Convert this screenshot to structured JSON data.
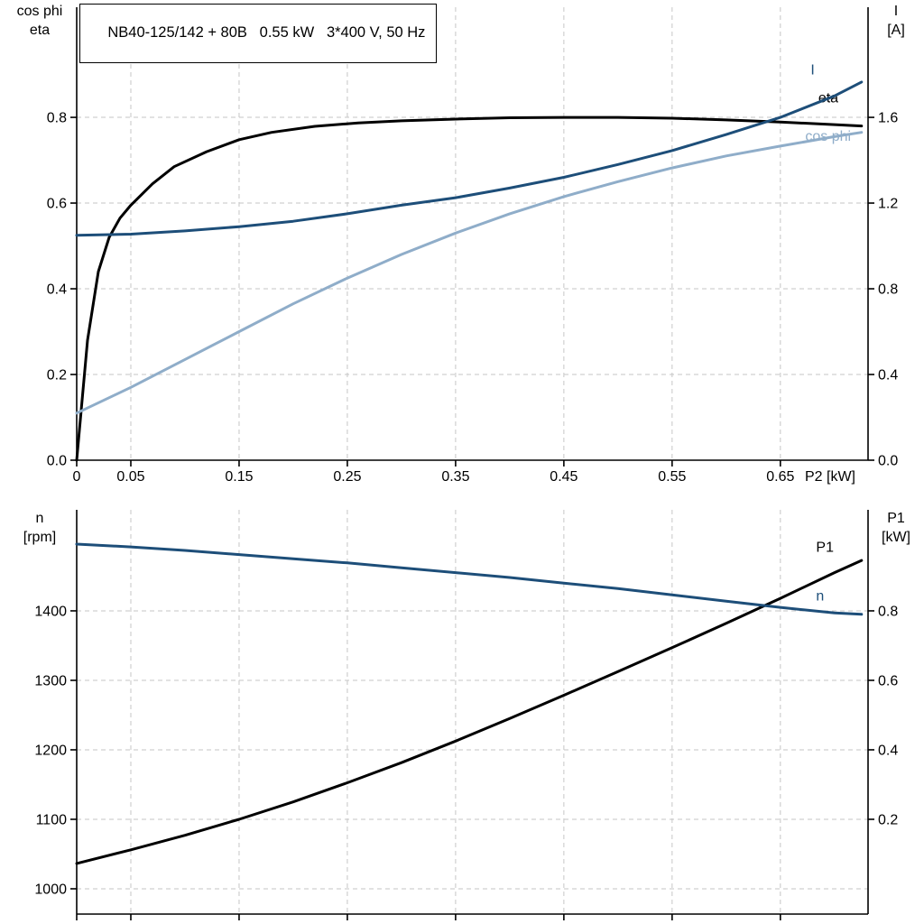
{
  "title": "NB40-125/142 + 80B   0.55 kW   3*400 V, 50 Hz",
  "colors": {
    "black": "#000000",
    "dark_blue": "#1d4e79",
    "light_blue": "#8fadc9",
    "grid": "#c6c6c6",
    "axis": "#000000"
  },
  "chart_data": [
    {
      "id": "top",
      "type": "line",
      "x_axis": {
        "label": "P2 [kW]",
        "min": 0,
        "max": 0.731,
        "ticks": [
          0,
          0.05,
          0.15,
          0.25,
          0.35,
          0.45,
          0.55,
          0.65
        ],
        "tick_labels": [
          "0",
          "0.05",
          "0.15",
          "0.25",
          "0.35",
          "0.45",
          "0.55",
          "0.65"
        ]
      },
      "left_axis": {
        "label_lines": [
          "cos phi",
          "eta"
        ],
        "min": 0,
        "max": 1.057,
        "ticks": [
          0,
          0.2,
          0.4,
          0.6,
          0.8
        ],
        "tick_labels": [
          "0.0",
          "0.2",
          "0.4",
          "0.6",
          "0.8"
        ]
      },
      "right_axis": {
        "label_lines": [
          "I",
          "[A]"
        ],
        "min": 0,
        "max": 2.114,
        "ticks": [
          0,
          0.4,
          0.8,
          1.2,
          1.6
        ],
        "tick_labels": [
          "0.0",
          "0.4",
          "0.8",
          "1.2",
          "1.6"
        ]
      },
      "series": [
        {
          "name": "eta",
          "axis": "left",
          "color_key": "black",
          "label": "eta",
          "label_at": {
            "x": 0.685,
            "y": 0.835
          },
          "points": [
            [
              0,
              0
            ],
            [
              0.01,
              0.28
            ],
            [
              0.02,
              0.44
            ],
            [
              0.03,
              0.52
            ],
            [
              0.04,
              0.565
            ],
            [
              0.05,
              0.595
            ],
            [
              0.07,
              0.645
            ],
            [
              0.09,
              0.685
            ],
            [
              0.12,
              0.72
            ],
            [
              0.15,
              0.748
            ],
            [
              0.18,
              0.765
            ],
            [
              0.22,
              0.779
            ],
            [
              0.26,
              0.787
            ],
            [
              0.3,
              0.792
            ],
            [
              0.35,
              0.796
            ],
            [
              0.4,
              0.799
            ],
            [
              0.45,
              0.8
            ],
            [
              0.5,
              0.8
            ],
            [
              0.55,
              0.798
            ],
            [
              0.6,
              0.794
            ],
            [
              0.65,
              0.789
            ],
            [
              0.7,
              0.783
            ],
            [
              0.725,
              0.78
            ]
          ]
        },
        {
          "name": "I",
          "axis": "right",
          "color_key": "dark_blue",
          "label": "I",
          "label_at": {
            "x": 0.678,
            "y": 1.8
          },
          "points": [
            [
              0,
              1.05
            ],
            [
              0.05,
              1.055
            ],
            [
              0.1,
              1.07
            ],
            [
              0.15,
              1.09
            ],
            [
              0.2,
              1.115
            ],
            [
              0.25,
              1.15
            ],
            [
              0.3,
              1.19
            ],
            [
              0.35,
              1.225
            ],
            [
              0.4,
              1.27
            ],
            [
              0.45,
              1.32
            ],
            [
              0.5,
              1.38
            ],
            [
              0.55,
              1.445
            ],
            [
              0.6,
              1.52
            ],
            [
              0.65,
              1.6
            ],
            [
              0.7,
              1.7
            ],
            [
              0.725,
              1.765
            ]
          ]
        },
        {
          "name": "cos phi",
          "axis": "left",
          "color_key": "light_blue",
          "label": "cos phi",
          "label_at": {
            "x": 0.673,
            "y": 0.745
          },
          "points": [
            [
              0,
              0.11
            ],
            [
              0.05,
              0.17
            ],
            [
              0.1,
              0.235
            ],
            [
              0.15,
              0.3
            ],
            [
              0.2,
              0.365
            ],
            [
              0.25,
              0.425
            ],
            [
              0.3,
              0.48
            ],
            [
              0.35,
              0.53
            ],
            [
              0.4,
              0.575
            ],
            [
              0.45,
              0.615
            ],
            [
              0.5,
              0.65
            ],
            [
              0.55,
              0.682
            ],
            [
              0.6,
              0.71
            ],
            [
              0.65,
              0.733
            ],
            [
              0.7,
              0.755
            ],
            [
              0.725,
              0.765
            ]
          ]
        }
      ]
    },
    {
      "id": "bottom",
      "type": "line",
      "x_axis": {
        "label": "",
        "min": 0,
        "max": 0.731,
        "ticks": [
          0,
          0.05,
          0.15,
          0.25,
          0.35,
          0.45,
          0.55,
          0.65
        ],
        "tick_labels": []
      },
      "left_axis": {
        "label_lines": [
          "n",
          "[rpm]"
        ],
        "min": 963.6,
        "max": 1545.4,
        "ticks": [
          1000,
          1100,
          1200,
          1300,
          1400
        ],
        "tick_labels": [
          "1000",
          "1100",
          "1200",
          "1300",
          "1400"
        ]
      },
      "right_axis": {
        "label_lines": [
          "P1",
          "[kW]"
        ],
        "min": -0.0728,
        "max": 1.0908,
        "ticks": [
          0.2,
          0.4,
          0.6,
          0.8
        ],
        "tick_labels": [
          "0.2",
          "0.4",
          "0.6",
          "0.8"
        ]
      },
      "series": [
        {
          "name": "P1",
          "axis": "right",
          "color_key": "black",
          "label": "P1",
          "label_at": {
            "x": 0.683,
            "y": 0.97
          },
          "points": [
            [
              0,
              0.073
            ],
            [
              0.05,
              0.112
            ],
            [
              0.1,
              0.154
            ],
            [
              0.15,
              0.2
            ],
            [
              0.2,
              0.25
            ],
            [
              0.25,
              0.305
            ],
            [
              0.3,
              0.363
            ],
            [
              0.35,
              0.425
            ],
            [
              0.4,
              0.49
            ],
            [
              0.45,
              0.557
            ],
            [
              0.5,
              0.625
            ],
            [
              0.55,
              0.694
            ],
            [
              0.6,
              0.764
            ],
            [
              0.65,
              0.836
            ],
            [
              0.7,
              0.91
            ],
            [
              0.725,
              0.945
            ]
          ]
        },
        {
          "name": "n",
          "axis": "left",
          "color_key": "dark_blue",
          "label": "n",
          "label_at": {
            "x": 0.683,
            "y": 1415
          },
          "points": [
            [
              0,
              1496
            ],
            [
              0.05,
              1492
            ],
            [
              0.1,
              1487
            ],
            [
              0.15,
              1481
            ],
            [
              0.2,
              1475
            ],
            [
              0.25,
              1469
            ],
            [
              0.3,
              1462
            ],
            [
              0.35,
              1455
            ],
            [
              0.4,
              1448
            ],
            [
              0.45,
              1440
            ],
            [
              0.5,
              1432
            ],
            [
              0.55,
              1423
            ],
            [
              0.6,
              1414
            ],
            [
              0.65,
              1405
            ],
            [
              0.7,
              1397
            ],
            [
              0.725,
              1395
            ]
          ]
        }
      ]
    }
  ]
}
